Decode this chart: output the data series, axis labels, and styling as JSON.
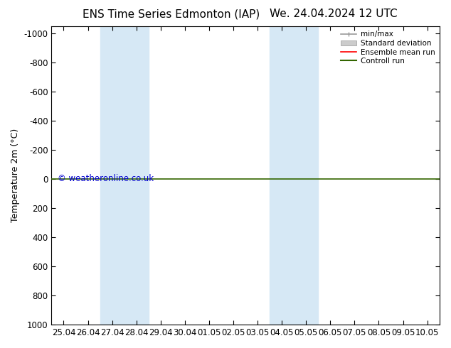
{
  "title_left": "ENS Time Series Edmonton (IAP)",
  "title_right": "We. 24.04.2024 12 UTC",
  "ylabel": "Temperature 2m (°C)",
  "ylim_bottom": 1000,
  "ylim_top": -1050,
  "yticks": [
    -1000,
    -800,
    -600,
    -400,
    -200,
    0,
    200,
    400,
    600,
    800,
    1000
  ],
  "x_labels": [
    "25.04",
    "26.04",
    "27.04",
    "28.04",
    "29.04",
    "30.04",
    "01.05",
    "02.05",
    "03.05",
    "04.05",
    "05.05",
    "06.05",
    "07.05",
    "08.05",
    "09.05",
    "10.05"
  ],
  "x_positions": [
    0,
    1,
    2,
    3,
    4,
    5,
    6,
    7,
    8,
    9,
    10,
    11,
    12,
    13,
    14,
    15
  ],
  "shade_bands": [
    {
      "xmin": 2,
      "xmax": 4
    },
    {
      "xmin": 9,
      "xmax": 11
    }
  ],
  "shade_color": "#d6e8f5",
  "control_run_y": 0,
  "control_run_color": "#336600",
  "ensemble_mean_color": "#ff0000",
  "minmax_color": "#999999",
  "stddev_color": "#cccccc",
  "watermark": "© weatheronline.co.uk",
  "watermark_color": "#0000cc",
  "background_color": "#ffffff",
  "plot_bg_color": "#ffffff",
  "legend_entries": [
    "min/max",
    "Standard deviation",
    "Ensemble mean run",
    "Controll run"
  ],
  "legend_colors": [
    "#999999",
    "#cccccc",
    "#ff0000",
    "#336600"
  ],
  "title_fontsize": 11,
  "axis_fontsize": 9,
  "tick_fontsize": 8.5
}
